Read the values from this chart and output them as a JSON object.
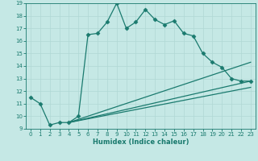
{
  "xlabel": "Humidex (Indice chaleur)",
  "bg_color": "#c5e8e5",
  "line_color": "#1a7a6e",
  "grid_color": "#b0d8d4",
  "xlim": [
    -0.5,
    23.5
  ],
  "ylim": [
    9,
    19
  ],
  "xticks": [
    0,
    1,
    2,
    3,
    4,
    5,
    6,
    7,
    8,
    9,
    10,
    11,
    12,
    13,
    14,
    15,
    16,
    17,
    18,
    19,
    20,
    21,
    22,
    23
  ],
  "yticks": [
    9,
    10,
    11,
    12,
    13,
    14,
    15,
    16,
    17,
    18,
    19
  ],
  "line1_x": [
    0,
    1,
    2,
    3,
    4,
    5,
    6,
    7,
    8,
    9,
    10,
    11,
    12,
    13,
    14,
    15,
    16,
    17,
    18,
    19,
    20,
    21,
    22,
    23
  ],
  "line1_y": [
    11.5,
    11.0,
    9.3,
    9.5,
    9.5,
    10.0,
    16.5,
    16.6,
    17.5,
    19.0,
    17.0,
    17.5,
    18.5,
    17.7,
    17.3,
    17.6,
    16.6,
    16.4,
    15.0,
    14.3,
    13.9,
    13.0,
    12.8,
    12.8
  ],
  "line2_x": [
    4,
    23
  ],
  "line2_y": [
    9.5,
    14.3
  ],
  "line3_x": [
    4,
    23
  ],
  "line3_y": [
    9.5,
    12.8
  ],
  "line4_x": [
    4,
    23
  ],
  "line4_y": [
    9.5,
    12.3
  ],
  "marker": "D",
  "markersize": 2.5,
  "linewidth": 0.9
}
